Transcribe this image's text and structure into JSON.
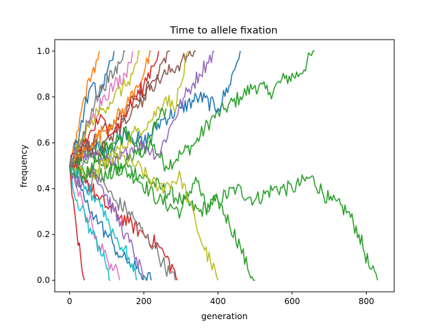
{
  "chart_data": {
    "type": "line",
    "title": "Time to allele fixation",
    "xlabel": "generation",
    "ylabel": "frequency",
    "xlim": [
      -40,
      875
    ],
    "ylim": [
      -0.05,
      1.05
    ],
    "xticks": [
      0,
      200,
      400,
      600,
      800
    ],
    "yticks": [
      0.0,
      0.2,
      0.4,
      0.6,
      0.8,
      1.0
    ],
    "xtick_labels": [
      "0",
      "200",
      "400",
      "600",
      "800"
    ],
    "ytick_labels": [
      "0.0",
      "0.2",
      "0.4",
      "0.6",
      "0.8",
      "1.0"
    ],
    "grid": false,
    "legend": "none",
    "colors": [
      "#1f77b4",
      "#ff7f0e",
      "#2ca02c",
      "#d62728",
      "#9467bd",
      "#8c564b",
      "#e377c2",
      "#7f7f7f",
      "#bcbd22",
      "#17becf"
    ],
    "series": [
      {
        "color": "#2ca02c",
        "x": [
          0,
          50,
          100,
          140,
          180,
          220,
          260,
          300,
          340,
          380,
          420,
          460,
          500,
          540,
          580,
          620,
          660
        ],
        "y": [
          0.5,
          0.55,
          0.6,
          0.5,
          0.55,
          0.6,
          0.5,
          0.55,
          0.6,
          0.7,
          0.75,
          0.8,
          0.85,
          0.82,
          0.88,
          0.9,
          1.0
        ]
      },
      {
        "color": "#2ca02c",
        "x": [
          0,
          50,
          100,
          150,
          200,
          250,
          300,
          350,
          400,
          450,
          500,
          550,
          600,
          650,
          700,
          750,
          780,
          810,
          830
        ],
        "y": [
          0.5,
          0.48,
          0.45,
          0.5,
          0.45,
          0.4,
          0.35,
          0.3,
          0.35,
          0.4,
          0.35,
          0.4,
          0.4,
          0.45,
          0.35,
          0.3,
          0.2,
          0.05,
          0.0
        ]
      },
      {
        "color": "#2ca02c",
        "x": [
          0,
          60,
          120,
          180,
          240,
          300,
          340,
          370,
          400,
          430,
          460,
          480,
          500
        ],
        "y": [
          0.5,
          0.55,
          0.5,
          0.45,
          0.35,
          0.3,
          0.45,
          0.3,
          0.35,
          0.25,
          0.15,
          0.05,
          0.0
        ]
      },
      {
        "color": "#1f77b4",
        "x": [
          0,
          50,
          100,
          150,
          200,
          250,
          300,
          350,
          400,
          430,
          460
        ],
        "y": [
          0.5,
          0.6,
          0.55,
          0.65,
          0.6,
          0.7,
          0.75,
          0.8,
          0.75,
          0.85,
          1.0
        ]
      },
      {
        "color": "#bcbd22",
        "x": [
          0,
          60,
          120,
          180,
          240,
          300,
          320,
          340,
          360,
          380,
          400
        ],
        "y": [
          0.5,
          0.45,
          0.55,
          0.5,
          0.4,
          0.45,
          0.35,
          0.25,
          0.15,
          0.08,
          0.0
        ]
      },
      {
        "color": "#9467bd",
        "x": [
          0,
          60,
          120,
          180,
          240,
          280,
          310,
          330,
          350,
          370,
          390
        ],
        "y": [
          0.5,
          0.55,
          0.5,
          0.6,
          0.55,
          0.7,
          0.8,
          0.85,
          0.9,
          0.95,
          1.0
        ]
      },
      {
        "color": "#8c564b",
        "x": [
          0,
          60,
          120,
          180,
          220,
          260,
          300,
          320,
          340
        ],
        "y": [
          0.5,
          0.6,
          0.7,
          0.8,
          0.85,
          0.9,
          0.95,
          0.98,
          1.0
        ]
      },
      {
        "color": "#bcbd22",
        "x": [
          0,
          60,
          120,
          180,
          220,
          260,
          280,
          300,
          320
        ],
        "y": [
          0.5,
          0.45,
          0.55,
          0.65,
          0.7,
          0.8,
          0.75,
          0.85,
          1.0
        ]
      },
      {
        "color": "#d62728",
        "x": [
          0,
          40,
          80,
          120,
          160,
          200,
          240,
          260,
          280,
          290
        ],
        "y": [
          0.5,
          0.45,
          0.35,
          0.3,
          0.25,
          0.2,
          0.15,
          0.1,
          0.05,
          0.0
        ]
      },
      {
        "color": "#7f7f7f",
        "x": [
          0,
          40,
          80,
          120,
          160,
          200,
          230,
          250,
          270,
          285
        ],
        "y": [
          0.5,
          0.4,
          0.45,
          0.35,
          0.3,
          0.2,
          0.15,
          0.08,
          0.03,
          0.0
        ]
      },
      {
        "color": "#ff7f0e",
        "x": [
          0,
          30,
          60,
          90,
          120,
          150,
          180,
          200,
          220
        ],
        "y": [
          0.5,
          0.55,
          0.6,
          0.65,
          0.7,
          0.75,
          0.85,
          0.9,
          1.0
        ]
      },
      {
        "color": "#1f77b4",
        "x": [
          0,
          20,
          40,
          60,
          80,
          100,
          120,
          140,
          160,
          180,
          200,
          220
        ],
        "y": [
          0.5,
          0.45,
          0.35,
          0.3,
          0.25,
          0.2,
          0.15,
          0.1,
          0.08,
          0.05,
          0.02,
          0.0
        ]
      },
      {
        "color": "#e377c2",
        "x": [
          0,
          20,
          40,
          60,
          80,
          100,
          120,
          135
        ],
        "y": [
          0.5,
          0.4,
          0.3,
          0.25,
          0.15,
          0.1,
          0.05,
          0.0
        ]
      },
      {
        "color": "#17becf",
        "x": [
          0,
          20,
          40,
          60,
          80,
          100,
          110
        ],
        "y": [
          0.5,
          0.35,
          0.3,
          0.2,
          0.15,
          0.05,
          0.0
        ]
      },
      {
        "color": "#d62728",
        "x": [
          0,
          10,
          20,
          30,
          40
        ],
        "y": [
          0.5,
          0.35,
          0.2,
          0.1,
          0.0
        ]
      },
      {
        "color": "#ff7f0e",
        "x": [
          0,
          20,
          40,
          60,
          80
        ],
        "y": [
          0.5,
          0.65,
          0.8,
          0.9,
          1.0
        ]
      },
      {
        "color": "#1f77b4",
        "x": [
          0,
          20,
          40,
          60,
          80,
          100,
          120
        ],
        "y": [
          0.5,
          0.6,
          0.75,
          0.85,
          0.8,
          0.9,
          1.0
        ]
      },
      {
        "color": "#e377c2",
        "x": [
          0,
          30,
          60,
          90,
          120,
          150,
          170
        ],
        "y": [
          0.5,
          0.6,
          0.7,
          0.8,
          0.85,
          0.9,
          1.0
        ]
      },
      {
        "color": "#9467bd",
        "x": [
          0,
          30,
          60,
          90,
          120,
          150,
          180,
          200
        ],
        "y": [
          0.5,
          0.4,
          0.5,
          0.4,
          0.3,
          0.2,
          0.1,
          0.0
        ]
      },
      {
        "color": "#17becf",
        "x": [
          0,
          40,
          80,
          120,
          160,
          180
        ],
        "y": [
          0.5,
          0.4,
          0.35,
          0.2,
          0.1,
          0.0
        ]
      },
      {
        "color": "#8c564b",
        "x": [
          0,
          40,
          80,
          120,
          160,
          200,
          240,
          270
        ],
        "y": [
          0.5,
          0.6,
          0.55,
          0.65,
          0.7,
          0.8,
          0.9,
          1.0
        ]
      },
      {
        "color": "#bcbd22",
        "x": [
          0,
          30,
          60,
          90,
          120,
          150,
          170,
          190
        ],
        "y": [
          0.5,
          0.6,
          0.7,
          0.75,
          0.8,
          0.85,
          0.9,
          1.0
        ]
      },
      {
        "color": "#d62728",
        "x": [
          0,
          40,
          80,
          120,
          160,
          200,
          240
        ],
        "y": [
          0.5,
          0.6,
          0.7,
          0.65,
          0.75,
          0.85,
          1.0
        ]
      },
      {
        "color": "#7f7f7f",
        "x": [
          0,
          30,
          60,
          90,
          120,
          150
        ],
        "y": [
          0.5,
          0.6,
          0.75,
          0.85,
          0.9,
          1.0
        ]
      },
      {
        "color": "#2ca02c",
        "x": [
          0,
          40,
          80,
          120,
          160,
          200,
          240,
          260
        ],
        "y": [
          0.5,
          0.45,
          0.55,
          0.6,
          0.65,
          0.55,
          0.7,
          0.75
        ]
      }
    ]
  }
}
